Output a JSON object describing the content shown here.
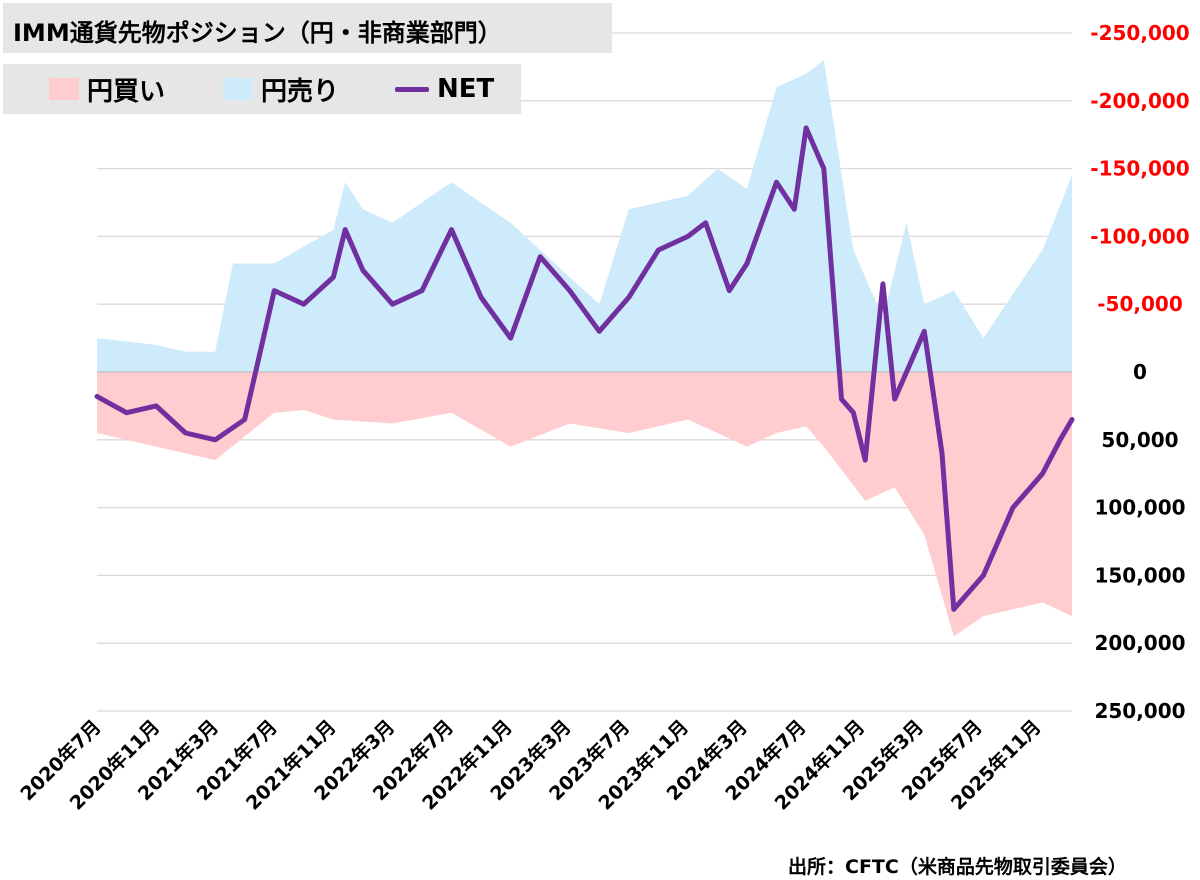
{
  "title": "IMM通貨先物ポジション（円・非商業部門）",
  "legend": {
    "long_label": "円買い",
    "short_label": "円売り",
    "net_label": "NET"
  },
  "source": "出所：CFTC（米商品先物取引委員会）",
  "colors": {
    "long": "#ffcccf",
    "short": "#cdebfb",
    "net": "#7030a0",
    "grid": "#d9d9d9",
    "negative_tick": "#ff0000",
    "positive_tick": "#000000"
  },
  "chart_data": {
    "type": "area",
    "y_inverted": true,
    "ylim": [
      -250000,
      250000
    ],
    "y_ticks": [
      {
        "value": -250000,
        "label": "-250,000"
      },
      {
        "value": -200000,
        "label": "-200,000"
      },
      {
        "value": -150000,
        "label": "-150,000"
      },
      {
        "value": -100000,
        "label": "-100,000"
      },
      {
        "value": -50000,
        "label": "-50,000"
      },
      {
        "value": 0,
        "label": "0"
      },
      {
        "value": 50000,
        "label": "50,000"
      },
      {
        "value": 100000,
        "label": "100,000"
      },
      {
        "value": 150000,
        "label": "150,000"
      },
      {
        "value": 200000,
        "label": "200,000"
      },
      {
        "value": 250000,
        "label": "250,000"
      }
    ],
    "x_ticks": [
      "2020年7月",
      "2020年11月",
      "2021年3月",
      "2021年7月",
      "2021年11月",
      "2022年3月",
      "2022年7月",
      "2022年11月",
      "2023年3月",
      "2023年7月",
      "2023年11月",
      "2024年3月",
      "2024年7月",
      "2024年11月",
      "2025年3月",
      "2025年7月",
      "2025年11月"
    ],
    "series": [
      {
        "name": "円買い",
        "kind": "area",
        "x": [
          0,
          1,
          2,
          3,
          3.5,
          4,
          5,
          6,
          7,
          8,
          9,
          10,
          11,
          11.5,
          12,
          12.3,
          13,
          13.5,
          14,
          14.5,
          15,
          16,
          16.5
        ],
        "y": [
          45000,
          55000,
          65000,
          30000,
          28000,
          35000,
          38000,
          30000,
          55000,
          38000,
          45000,
          35000,
          55000,
          45000,
          40000,
          55000,
          95000,
          85000,
          120000,
          195000,
          180000,
          170000,
          180000
        ]
      },
      {
        "name": "円売り",
        "kind": "area",
        "x": [
          0,
          1,
          1.5,
          2,
          2.3,
          3,
          4,
          4.2,
          4.5,
          5,
          6,
          7,
          8,
          8.5,
          9,
          10,
          10.5,
          11,
          11.5,
          12,
          12.3,
          12.8,
          13,
          13.3,
          13.7,
          14,
          14.5,
          15,
          16,
          16.5
        ],
        "y": [
          -25000,
          -20000,
          -15000,
          -15000,
          -80000,
          -80000,
          -105000,
          -140000,
          -120000,
          -110000,
          -140000,
          -110000,
          -70000,
          -50000,
          -120000,
          -130000,
          -150000,
          -135000,
          -210000,
          -220000,
          -230000,
          -90000,
          -70000,
          -40000,
          -110000,
          -50000,
          -60000,
          -25000,
          -90000,
          -145000
        ]
      },
      {
        "name": "NET",
        "kind": "line",
        "x": [
          0,
          0.5,
          1,
          1.5,
          2,
          2.5,
          3,
          3.5,
          4,
          4.2,
          4.5,
          5,
          5.5,
          6,
          6.5,
          7,
          7.5,
          8,
          8.5,
          9,
          9.5,
          10,
          10.3,
          10.7,
          11,
          11.5,
          11.8,
          12,
          12.3,
          12.6,
          12.8,
          13,
          13.3,
          13.5,
          13.8,
          14,
          14.3,
          14.5,
          15,
          15.5,
          16,
          16.3,
          16.5
        ],
        "y": [
          18000,
          30000,
          25000,
          45000,
          50000,
          35000,
          -60000,
          -50000,
          -70000,
          -105000,
          -75000,
          -50000,
          -60000,
          -105000,
          -55000,
          -25000,
          -85000,
          -60000,
          -30000,
          -55000,
          -90000,
          -100000,
          -110000,
          -60000,
          -80000,
          -140000,
          -120000,
          -180000,
          -150000,
          20000,
          30000,
          65000,
          -65000,
          20000,
          -10000,
          -30000,
          60000,
          175000,
          150000,
          100000,
          75000,
          50000,
          35000
        ]
      }
    ]
  }
}
